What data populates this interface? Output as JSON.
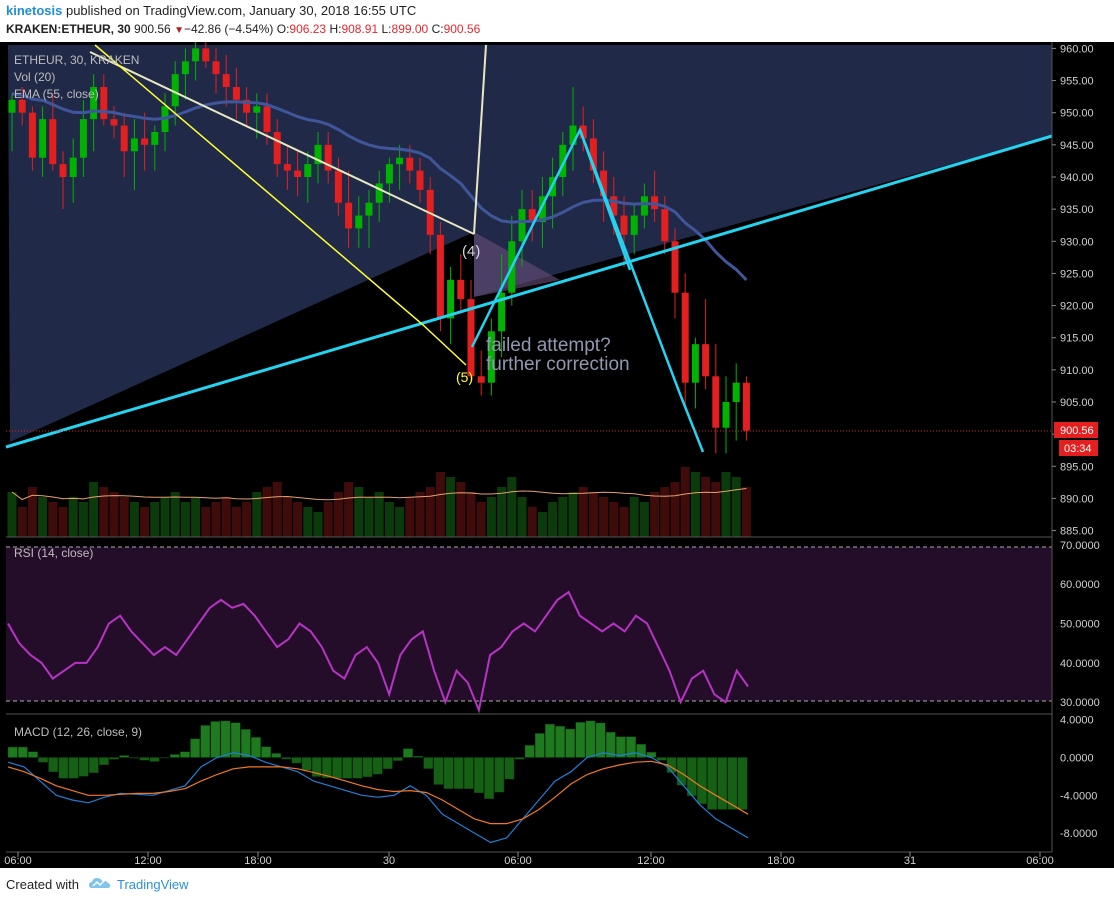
{
  "header": {
    "user": "kinetosis",
    "published": " published on TradingView.com, January 30, 2018 16:55 UTC",
    "symbol": "KRAKEN:ETHEUR, 30",
    "last": "900.56",
    "triangle": "▼",
    "change": "−42.86 (−4.54%)",
    "o_label": "O:",
    "o_value": "906.23",
    "h_label": "H:",
    "h_value": "908.91",
    "l_label": "L:",
    "l_value": "899.00",
    "c_label": "C:",
    "c_value": "900.56"
  },
  "legend": {
    "symbol": "ETHEUR, 30, KRAKEN",
    "volume": "Vol (20)",
    "ema": "EMA (55, close)",
    "rsi": "RSI (14, close)",
    "macd": "MACD (12, 26, close, 9)"
  },
  "annotations": {
    "failed_line1": "failed attempt?",
    "failed_line2": "further correction",
    "wave4": "(4)",
    "wave5": "(5)"
  },
  "price_badge": {
    "price": "900.56",
    "countdown": "03:34"
  },
  "footer": {
    "created": "Created with",
    "brand": "TradingView"
  },
  "colors": {
    "background": "#000000",
    "up": "#00b300",
    "down": "#e41f1f",
    "ema": "#3f569a",
    "rsi": "#b833c5",
    "macd": "#1e7fd6",
    "signal": "#f07820",
    "trendline": "#23d3f0",
    "wave": "#ffff33"
  },
  "chart_data": [
    {
      "type": "candlestick",
      "title": "ETHEUR, 30, KRAKEN",
      "ylim": [
        884,
        961
      ],
      "y_ticks": [
        "960.00",
        "955.00",
        "950.00",
        "945.00",
        "940.00",
        "935.00",
        "930.00",
        "925.00",
        "920.00",
        "915.00",
        "910.00",
        "905.00",
        "900.00",
        "895.00",
        "890.00",
        "885.00"
      ],
      "x_ticks": [
        "06:00",
        "12:00",
        "18:00",
        "30",
        "06:00",
        "12:00",
        "18:00",
        "31",
        "06:00"
      ],
      "last_price": 900.56,
      "candles": [
        [
          950,
          953,
          944,
          952
        ],
        [
          952,
          954,
          948,
          950
        ],
        [
          950,
          951,
          941,
          943
        ],
        [
          943,
          951,
          940,
          949
        ],
        [
          949,
          953,
          941,
          942
        ],
        [
          942,
          944,
          935,
          940
        ],
        [
          940,
          946,
          936,
          943
        ],
        [
          943,
          952,
          940,
          949
        ],
        [
          949,
          956,
          944,
          954
        ],
        [
          954,
          956,
          948,
          949
        ],
        [
          949,
          951,
          946,
          948
        ],
        [
          948,
          950,
          940,
          944
        ],
        [
          944,
          949,
          938,
          946
        ],
        [
          946,
          950,
          941,
          945
        ],
        [
          945,
          948,
          941,
          947
        ],
        [
          947,
          953,
          944,
          951
        ],
        [
          951,
          958,
          948,
          956
        ],
        [
          956,
          960,
          952,
          958
        ],
        [
          958,
          962,
          955,
          960
        ],
        [
          960,
          962,
          957,
          958
        ],
        [
          958,
          960,
          953,
          956
        ],
        [
          956,
          959,
          951,
          954
        ],
        [
          954,
          957,
          949,
          952
        ],
        [
          952,
          954,
          948,
          950
        ],
        [
          950,
          953,
          946,
          951
        ],
        [
          951,
          953,
          945,
          947
        ],
        [
          947,
          949,
          940,
          942
        ],
        [
          942,
          945,
          938,
          941
        ],
        [
          941,
          944,
          937,
          940
        ],
        [
          940,
          944,
          936,
          942
        ],
        [
          942,
          947,
          939,
          945
        ],
        [
          945,
          947,
          939,
          941
        ],
        [
          941,
          943,
          934,
          936
        ],
        [
          936,
          941,
          929,
          932
        ],
        [
          932,
          937,
          929,
          934
        ],
        [
          934,
          938,
          929,
          936
        ],
        [
          936,
          941,
          933,
          939
        ],
        [
          939,
          943,
          936,
          942
        ],
        [
          942,
          945,
          938,
          943
        ],
        [
          943,
          945,
          939,
          941
        ],
        [
          941,
          943,
          936,
          938
        ],
        [
          938,
          940,
          928,
          931
        ],
        [
          931,
          933,
          916,
          918
        ],
        [
          918,
          926,
          914,
          924
        ],
        [
          924,
          928,
          919,
          921
        ],
        [
          921,
          924,
          908,
          909
        ],
        [
          909,
          913,
          906,
          908
        ],
        [
          908,
          918,
          906,
          916
        ],
        [
          916,
          928,
          912,
          922
        ],
        [
          922,
          934,
          920,
          930
        ],
        [
          930,
          938,
          926,
          935
        ],
        [
          935,
          938,
          930,
          933
        ],
        [
          933,
          940,
          929,
          937
        ],
        [
          937,
          943,
          932,
          940
        ],
        [
          940,
          947,
          937,
          945
        ],
        [
          945,
          954,
          941,
          948
        ],
        [
          948,
          951,
          944,
          946
        ],
        [
          946,
          949,
          939,
          941
        ],
        [
          941,
          944,
          933,
          937
        ],
        [
          937,
          940,
          931,
          934
        ],
        [
          934,
          937,
          926,
          931
        ],
        [
          931,
          936,
          928,
          934
        ],
        [
          934,
          939,
          932,
          937
        ],
        [
          937,
          941,
          933,
          935
        ],
        [
          935,
          937,
          928,
          930
        ],
        [
          930,
          932,
          918,
          922
        ],
        [
          922,
          925,
          904,
          908
        ],
        [
          908,
          915,
          904,
          914
        ],
        [
          914,
          921,
          907,
          909
        ],
        [
          909,
          914,
          897,
          901
        ],
        [
          901,
          909,
          897,
          905
        ],
        [
          905,
          911,
          899,
          908
        ],
        [
          908,
          909,
          899,
          900.56
        ]
      ]
    },
    {
      "type": "bar",
      "title": "Vol (20)",
      "values": [
        9,
        6,
        10,
        8,
        7,
        6,
        8,
        7,
        11,
        10,
        9,
        8,
        7,
        6,
        7,
        8,
        9,
        7,
        8,
        6,
        7,
        8,
        6,
        7,
        9,
        10,
        11,
        8,
        7,
        6,
        5,
        7,
        9,
        11,
        10,
        8,
        9,
        7,
        6,
        8,
        9,
        10,
        13,
        12,
        11,
        9,
        7,
        8,
        10,
        12,
        8,
        6,
        5,
        7,
        8,
        9,
        10,
        9,
        8,
        7,
        6,
        8,
        7,
        9,
        10,
        11,
        14,
        13,
        12,
        11,
        13,
        12,
        10
      ]
    },
    {
      "type": "line",
      "title": "RSI (14, close)",
      "ylim": [
        27,
        72
      ],
      "y_ticks": [
        "70.0000",
        "60.0000",
        "50.0000",
        "40.0000",
        "30.0000"
      ],
      "band": [
        30,
        70
      ],
      "values": [
        50,
        45,
        42,
        40,
        36,
        38,
        40,
        40,
        44,
        50,
        52,
        48,
        45,
        42,
        44,
        42,
        46,
        50,
        54,
        56,
        54,
        55,
        52,
        48,
        44,
        46,
        50,
        48,
        44,
        38,
        36,
        42,
        44,
        40,
        32,
        42,
        46,
        48,
        38,
        30,
        38,
        35,
        28,
        42,
        44,
        48,
        50,
        48,
        52,
        56,
        58,
        52,
        50,
        48,
        50,
        48,
        52,
        50,
        44,
        38,
        30,
        36,
        38,
        32,
        30,
        38,
        34
      ]
    },
    {
      "type": "line",
      "title": "MACD (12, 26, close, 9)",
      "ylim": [
        -10,
        4.6
      ],
      "y_ticks": [
        "4.0000",
        "0.0000",
        "-4.0000",
        "-8.0000"
      ],
      "macd": [
        -0.5,
        -1,
        -2.5,
        -4,
        -4.5,
        -4.8,
        -4.2,
        -3.8,
        -3.9,
        -4,
        -3.5,
        -3,
        -1,
        0,
        0.5,
        0.2,
        -0.5,
        -1,
        -1.5,
        -2.5,
        -3,
        -3.5,
        -4,
        -4.2,
        -4,
        -3,
        -4,
        -6,
        -7,
        -8,
        -9,
        -8.5,
        -6.5,
        -4.5,
        -2.5,
        -1.5,
        0,
        0.5,
        0.2,
        0.5,
        0,
        -1,
        -3,
        -5,
        -6.5,
        -7.5,
        -8.5
      ],
      "signal": [
        -1,
        -1.5,
        -2.2,
        -3,
        -3.5,
        -4,
        -4,
        -3.9,
        -3.8,
        -3.8,
        -3.6,
        -3.3,
        -2.5,
        -1.8,
        -1.2,
        -1,
        -1,
        -1,
        -1.2,
        -1.6,
        -2,
        -2.5,
        -3,
        -3.4,
        -3.6,
        -3.5,
        -3.7,
        -4.5,
        -5.5,
        -6.5,
        -7,
        -7,
        -6.5,
        -5.5,
        -4.2,
        -2.8,
        -1.8,
        -1.2,
        -0.8,
        -0.5,
        -0.4,
        -0.8,
        -1.8,
        -3,
        -4,
        -5,
        -6
      ]
    }
  ]
}
